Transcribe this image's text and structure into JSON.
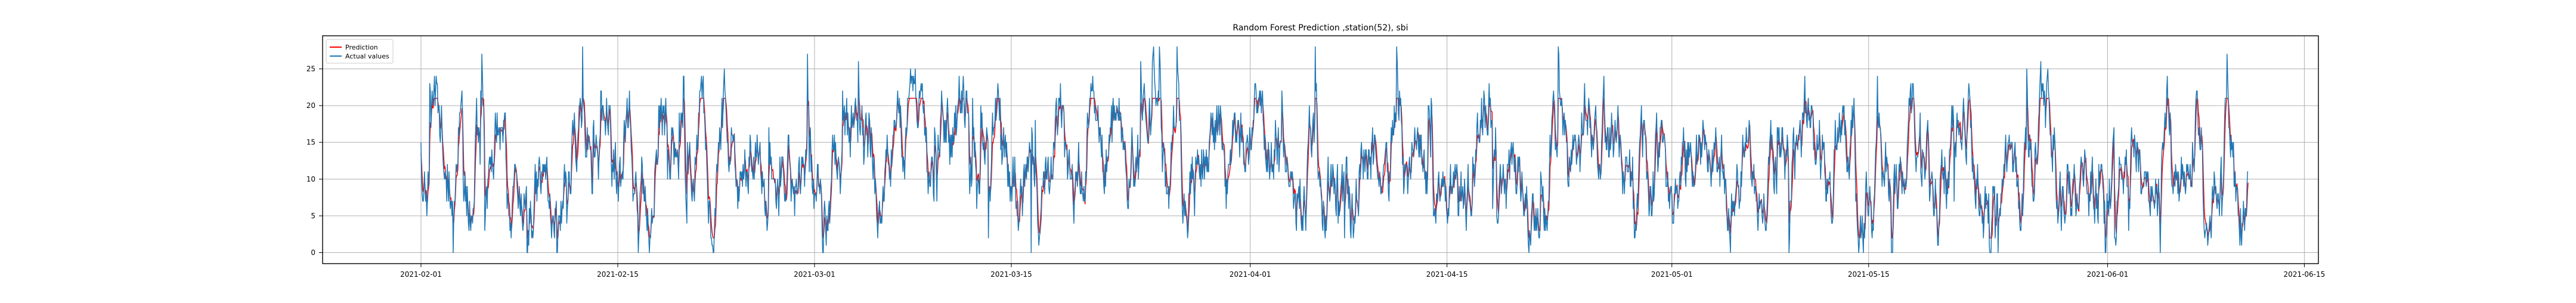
{
  "chart_data": {
    "type": "line",
    "title": "Random Forest Prediction ,station(52), sbi",
    "xlabel": "",
    "ylabel": "",
    "x_range": [
      "2021-01-25",
      "2021-06-16"
    ],
    "ylim": [
      -1.5,
      29.5
    ],
    "x_ticks": [
      "2021-02-01",
      "2021-02-15",
      "2021-03-01",
      "2021-03-15",
      "2021-04-01",
      "2021-04-15",
      "2021-05-01",
      "2021-05-15",
      "2021-06-01",
      "2021-06-15"
    ],
    "y_ticks": [
      0,
      5,
      10,
      15,
      20,
      25
    ],
    "grid": true,
    "legend": {
      "placement": "top-left"
    },
    "series": [
      {
        "name": "Prediction",
        "color": "#ff0000"
      },
      {
        "name": "Actual values",
        "color": "#1f77b4"
      }
    ],
    "data_start": "2021-02-01",
    "data_end": "2021-06-11",
    "note_series_sampling": "hourly readings, approx. 3130 points per series"
  }
}
